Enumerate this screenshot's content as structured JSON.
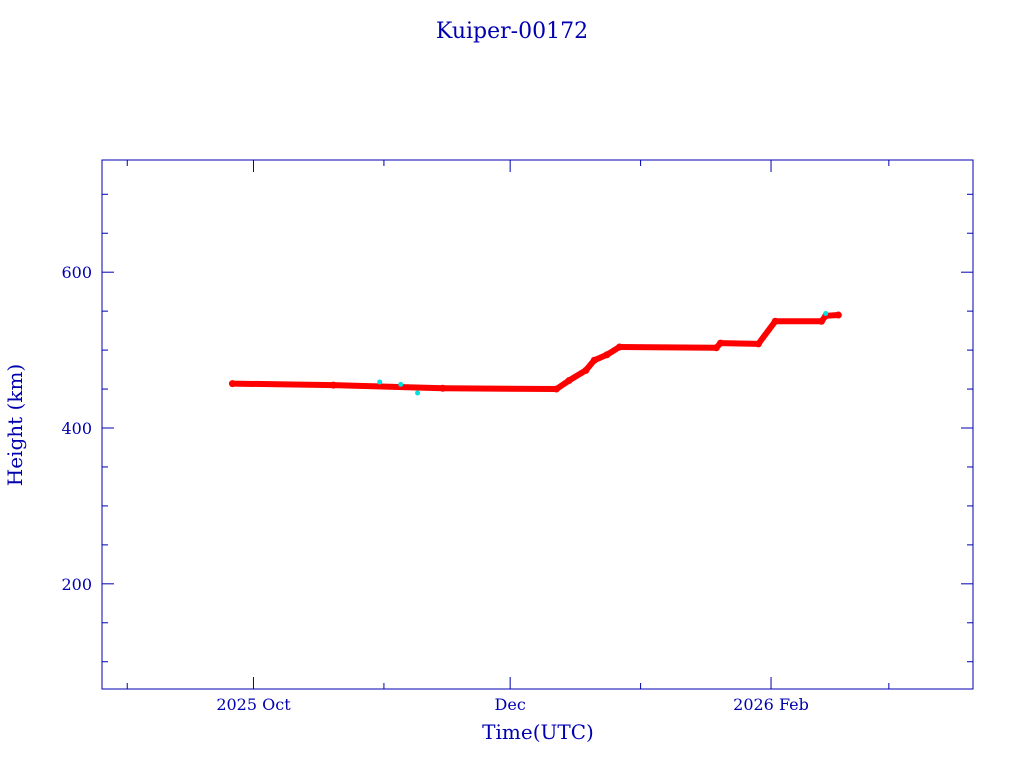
{
  "chart_data": {
    "type": "scatter",
    "title": "Kuiper-00172",
    "xlabel": "Time(UTC)",
    "ylabel": "Height (km)",
    "xlim": [
      "2025-08-26",
      "2026-03-21"
    ],
    "ylim": [
      65,
      744
    ],
    "grid": false,
    "x_major_ticks": [
      {
        "date": "2025-10-01",
        "label": "2025 Oct"
      },
      {
        "date": "2025-12-01",
        "label": "Dec"
      },
      {
        "date": "2026-02-01",
        "label": "2026 Feb"
      }
    ],
    "x_minor_ticks": [
      "2025-09-01",
      "2025-11-01",
      "2026-01-01",
      "2026-03-01"
    ],
    "y_major_ticks": [
      200,
      400,
      600
    ],
    "y_minor_ticks": [
      100,
      150,
      250,
      300,
      350,
      450,
      500,
      550,
      650,
      700
    ],
    "colors": {
      "axis": "#0000b0",
      "main": "#ff0000",
      "outlier": "#00e0e0"
    },
    "series": [
      {
        "name": "height",
        "color": "#ff0000",
        "points": [
          [
            "2025-09-26",
            457
          ],
          [
            "2025-10-20",
            455
          ],
          [
            "2025-11-15",
            451
          ],
          [
            "2025-12-12",
            450
          ],
          [
            "2025-12-15",
            461
          ],
          [
            "2025-12-19",
            474
          ],
          [
            "2025-12-21",
            487
          ],
          [
            "2025-12-24",
            494
          ],
          [
            "2025-12-27",
            504
          ],
          [
            "2026-01-19",
            503
          ],
          [
            "2026-01-20",
            509
          ],
          [
            "2026-01-29",
            508
          ],
          [
            "2026-02-02",
            537
          ],
          [
            "2026-02-13",
            537
          ],
          [
            "2026-02-14",
            544
          ],
          [
            "2026-02-17",
            545
          ]
        ]
      },
      {
        "name": "outliers",
        "color": "#00e0e0",
        "points": [
          [
            "2025-10-31",
            459
          ],
          [
            "2025-11-05",
            456
          ],
          [
            "2025-11-09",
            445
          ],
          [
            "2026-02-14",
            547
          ]
        ]
      }
    ]
  }
}
